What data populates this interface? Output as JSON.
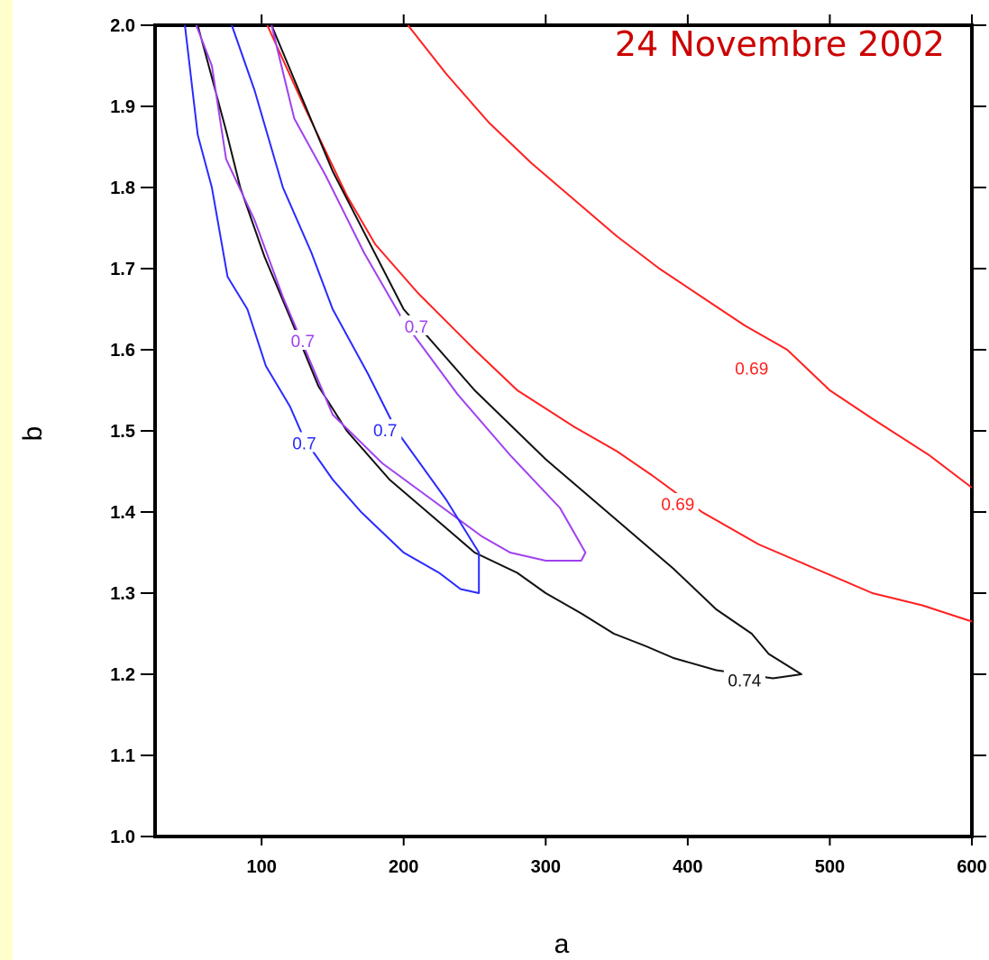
{
  "chart_data": {
    "type": "contour",
    "title": "24 Novembre 2002",
    "xlabel": "a",
    "ylabel": "b",
    "xlim": [
      25,
      600
    ],
    "ylim": [
      1.0,
      2.0
    ],
    "xticks": [
      100,
      200,
      300,
      400,
      500,
      600
    ],
    "xtick_labels": [
      "100",
      "200",
      "300",
      "400",
      "500",
      "600"
    ],
    "yticks": [
      1.0,
      1.1,
      1.2,
      1.3,
      1.4,
      1.5,
      1.6,
      1.7,
      1.8,
      1.9,
      2.0
    ],
    "ytick_labels": [
      "1.0",
      "1.1",
      "1.2",
      "1.3",
      "1.4",
      "1.5",
      "1.6",
      "1.7",
      "1.8",
      "1.9",
      "2.0"
    ],
    "grid": false,
    "colors": {
      "title": "#cc0000",
      "red": "#ff2020",
      "blue": "#2a2aff",
      "purple": "#a040f0",
      "black": "#111111",
      "side_strip": "#ffffcc"
    },
    "series": [
      {
        "color": "red",
        "label": "0.69",
        "label_at": [
          445,
          1.577
        ],
        "points": [
          [
            203,
            2.0
          ],
          [
            230,
            1.94
          ],
          [
            260,
            1.88
          ],
          [
            290,
            1.83
          ],
          [
            320,
            1.785
          ],
          [
            350,
            1.74
          ],
          [
            380,
            1.7
          ],
          [
            410,
            1.665
          ],
          [
            440,
            1.63
          ],
          [
            470,
            1.6
          ],
          [
            500,
            1.55
          ],
          [
            530,
            1.515
          ],
          [
            570,
            1.47
          ],
          [
            600,
            1.43
          ]
        ]
      },
      {
        "color": "red",
        "label": "0.69",
        "label_at": [
          393,
          1.41
        ],
        "points": [
          [
            104,
            2.0
          ],
          [
            130,
            1.9
          ],
          [
            160,
            1.79
          ],
          [
            180,
            1.73
          ],
          [
            210,
            1.67
          ],
          [
            250,
            1.6
          ],
          [
            280,
            1.55
          ],
          [
            320,
            1.505
          ],
          [
            350,
            1.475
          ],
          [
            375,
            1.445
          ],
          [
            410,
            1.4
          ],
          [
            450,
            1.36
          ],
          [
            490,
            1.33
          ],
          [
            530,
            1.3
          ],
          [
            565,
            1.285
          ],
          [
            600,
            1.265
          ]
        ]
      },
      {
        "color": "black",
        "label": "0.74",
        "label_at": [
          440,
          1.193
        ],
        "points": [
          [
            107,
            2.0
          ],
          [
            150,
            1.82
          ],
          [
            200,
            1.65
          ],
          [
            250,
            1.55
          ],
          [
            300,
            1.465
          ],
          [
            350,
            1.39
          ],
          [
            390,
            1.33
          ],
          [
            420,
            1.28
          ],
          [
            445,
            1.25
          ],
          [
            457,
            1.225
          ],
          [
            480,
            1.2
          ],
          [
            460,
            1.195
          ],
          [
            420,
            1.205
          ],
          [
            390,
            1.22
          ],
          [
            370,
            1.235
          ],
          [
            348,
            1.25
          ],
          [
            325,
            1.275
          ],
          [
            300,
            1.3
          ],
          [
            280,
            1.325
          ],
          [
            250,
            1.35
          ],
          [
            220,
            1.395
          ],
          [
            190,
            1.44
          ],
          [
            160,
            1.5
          ],
          [
            140,
            1.555
          ],
          [
            120,
            1.64
          ],
          [
            102,
            1.715
          ],
          [
            85,
            1.8
          ],
          [
            75,
            1.87
          ],
          [
            62,
            1.955
          ],
          [
            55,
            2.0
          ]
        ]
      },
      {
        "color": "purple",
        "label": "0.7",
        "label_at": [
          129,
          1.611
        ],
        "points": [
          [
            54,
            2.0
          ],
          [
            65,
            1.95
          ],
          [
            75,
            1.835
          ],
          [
            95,
            1.76
          ],
          [
            115,
            1.665
          ],
          [
            150,
            1.52
          ],
          [
            185,
            1.46
          ],
          [
            220,
            1.415
          ],
          [
            255,
            1.37
          ],
          [
            275,
            1.35
          ],
          [
            300,
            1.34
          ],
          [
            325,
            1.34
          ],
          [
            328,
            1.35
          ],
          [
            310,
            1.405
          ],
          [
            275,
            1.47
          ],
          [
            238,
            1.545
          ],
          [
            200,
            1.635
          ],
          [
            172,
            1.72
          ],
          [
            145,
            1.815
          ],
          [
            123,
            1.885
          ],
          [
            107,
            2.0
          ]
        ]
      },
      {
        "color": "blue",
        "label": "0.7",
        "label_at": [
          187,
          1.501
        ],
        "points": [
          [
            79,
            2.0
          ],
          [
            95,
            1.92
          ],
          [
            115,
            1.8
          ],
          [
            135,
            1.72
          ],
          [
            150,
            1.65
          ],
          [
            175,
            1.57
          ],
          [
            195,
            1.5
          ],
          [
            230,
            1.415
          ],
          [
            253,
            1.35
          ],
          [
            253,
            1.3
          ],
          [
            240,
            1.305
          ],
          [
            225,
            1.325
          ],
          [
            200,
            1.35
          ],
          [
            170,
            1.4
          ],
          [
            150,
            1.44
          ],
          [
            130,
            1.49
          ],
          [
            120,
            1.53
          ],
          [
            103,
            1.58
          ],
          [
            90,
            1.65
          ],
          [
            76,
            1.69
          ],
          [
            65,
            1.8
          ],
          [
            55,
            1.865
          ],
          [
            46,
            2.0
          ]
        ]
      },
      {
        "color": "purple",
        "label": "0.7",
        "label_at": [
          209,
          1.629
        ],
        "label_only": true
      },
      {
        "color": "blue",
        "label": "0.7",
        "label_at": [
          130,
          1.485
        ],
        "label_only": true
      }
    ]
  }
}
